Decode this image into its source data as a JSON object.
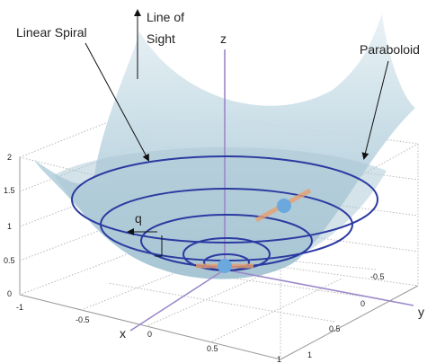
{
  "labels": {
    "line_of_sight": [
      "Line of",
      "Sight"
    ],
    "linear_spiral": "Linear Spiral",
    "paraboloid": "Paraboloid",
    "z_axis": "z",
    "x_axis": "x",
    "y_axis": "y",
    "q": "q"
  },
  "z_ticks": [
    "0",
    "0.5",
    "1",
    "1.5",
    "2"
  ],
  "x_ticks": [
    "-1",
    "-0.5",
    "0",
    "0.5",
    "1"
  ],
  "y_ticks": [
    "-0.5",
    "0",
    "0.5",
    "1"
  ]
}
